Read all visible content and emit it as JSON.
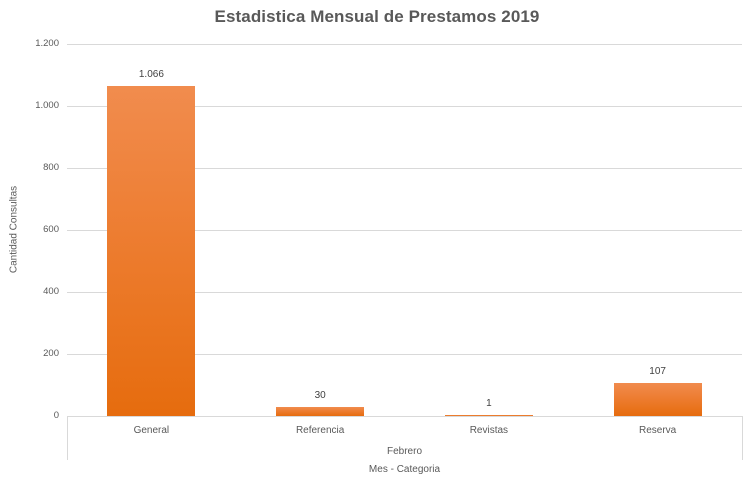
{
  "chart_data": {
    "type": "bar",
    "title": "Estadistica Mensual de Prestamos 2019",
    "ylabel": "Cantidad Consultas",
    "xlabel": "Mes - Categoria",
    "group_label": "Febrero",
    "categories": [
      "General",
      "Referencia",
      "Revistas",
      "Reserva"
    ],
    "values": [
      1066,
      30,
      1,
      107
    ],
    "value_labels": [
      "1.066",
      "30",
      "1",
      "107"
    ],
    "ylim": [
      0,
      1200
    ],
    "ytick_step": 200,
    "ytick_labels": [
      "0",
      "200",
      "400",
      "600",
      "800",
      "1.000",
      "1.200"
    ],
    "grid": "horizontal",
    "legend": "none",
    "bar_color": "#ed7d31",
    "bar_gradient_top": "#f18c4e",
    "bar_gradient_bottom": "#e66c0e",
    "gridline_color": "#d9d9d9",
    "text_color": "#595959"
  }
}
